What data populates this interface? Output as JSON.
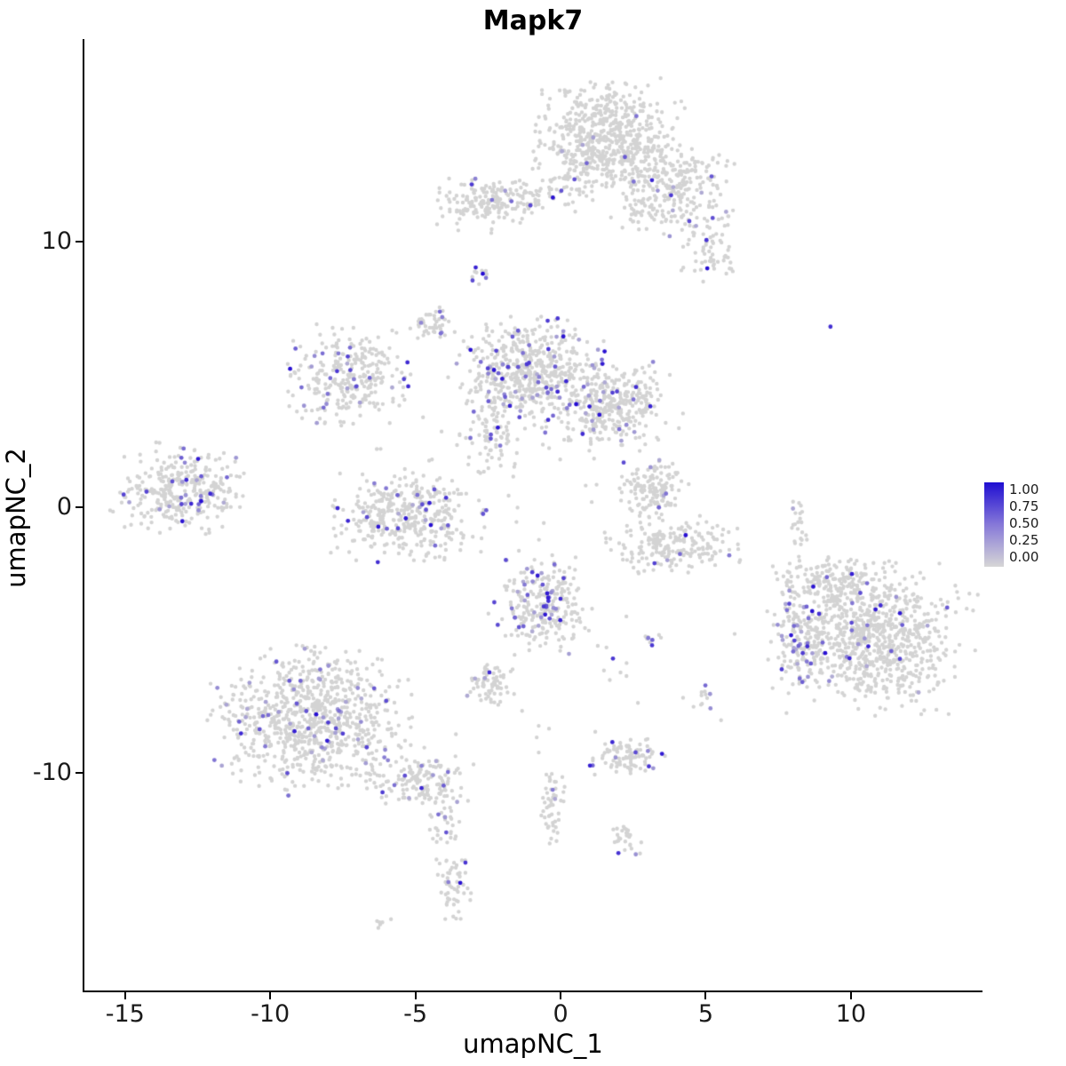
{
  "title": "Mapk7",
  "axes": {
    "x": {
      "label": "umapNC_1",
      "values": [
        -15,
        -10,
        -5,
        0,
        5,
        10
      ],
      "labels": [
        "-15",
        "-10",
        "-5",
        "0",
        "5",
        "10"
      ]
    },
    "y": {
      "label": "umapNC_2",
      "values": [
        -10,
        0,
        10
      ],
      "labels": [
        "-10",
        "0",
        "10"
      ]
    }
  },
  "legend": {
    "labels": [
      "1.00",
      "0.75",
      "0.50",
      "0.25",
      "0.00"
    ],
    "color_high": "#1f0ed2",
    "color_mid": "#8678d8",
    "color_low": "#d6d6d6"
  },
  "chart_data": {
    "type": "scatter",
    "title": "Mapk7",
    "xlabel": "umapNC_1",
    "ylabel": "umapNC_2",
    "xlim": [
      -16.4,
      14.5
    ],
    "ylim": [
      -18.2,
      17.6
    ],
    "grid": false,
    "legend_position": "right",
    "value_range": [
      0.0,
      1.0
    ],
    "point_color_zero": "#d3d3d3",
    "point_color_max": "#230ad2",
    "description": "UMAP feature plot of Mapk7 expression per cell; grey = no expression, blue = high expression",
    "clusters": [
      {
        "id": "top-main",
        "cx": 1.6,
        "cy": 13.8,
        "sx": 1.15,
        "sy": 1.0,
        "n": 650,
        "expressing_fraction": 0.012
      },
      {
        "id": "top-right",
        "cx": 3.9,
        "cy": 11.9,
        "sx": 0.95,
        "sy": 0.75,
        "n": 260,
        "expressing_fraction": 0.035
      },
      {
        "id": "top-right-arm",
        "cx": 5.2,
        "cy": 9.8,
        "sx": 0.45,
        "sy": 0.6,
        "n": 70,
        "expressing_fraction": 0.05
      },
      {
        "id": "top-left-small",
        "cx": -2.5,
        "cy": 11.4,
        "sx": 0.85,
        "sy": 0.45,
        "n": 170,
        "expressing_fraction": 0.05
      },
      {
        "id": "top-bridge",
        "cx": -0.7,
        "cy": 11.9,
        "sx": 0.7,
        "sy": 0.35,
        "n": 45,
        "expressing_fraction": 0.04
      },
      {
        "id": "dots-upper-mid",
        "cx": -2.8,
        "cy": 8.8,
        "sx": 0.18,
        "sy": 0.22,
        "n": 12,
        "expressing_fraction": 0.25
      },
      {
        "id": "small-upper-left",
        "cx": -4.4,
        "cy": 6.9,
        "sx": 0.32,
        "sy": 0.28,
        "n": 45,
        "expressing_fraction": 0.06
      },
      {
        "id": "left-mid",
        "cx": -7.3,
        "cy": 4.9,
        "sx": 0.95,
        "sy": 0.85,
        "n": 290,
        "expressing_fraction": 0.09
      },
      {
        "id": "central-main",
        "cx": -1.0,
        "cy": 5.1,
        "sx": 1.05,
        "sy": 0.95,
        "n": 560,
        "expressing_fraction": 0.13
      },
      {
        "id": "central-right",
        "cx": 1.8,
        "cy": 3.9,
        "sx": 0.85,
        "sy": 0.75,
        "n": 310,
        "expressing_fraction": 0.1
      },
      {
        "id": "central-south",
        "cx": -2.4,
        "cy": 2.6,
        "sx": 0.5,
        "sy": 0.55,
        "n": 70,
        "expressing_fraction": 0.1
      },
      {
        "id": "midfield-sparse",
        "cx": -1.5,
        "cy": 2.6,
        "sx": 2.6,
        "sy": 1.8,
        "n": 70,
        "expressing_fraction": 0.03
      },
      {
        "id": "mid-left",
        "cx": -5.3,
        "cy": -0.4,
        "sx": 1.15,
        "sy": 0.75,
        "n": 390,
        "expressing_fraction": 0.08
      },
      {
        "id": "far-left",
        "cx": -13.2,
        "cy": 0.7,
        "sx": 1.0,
        "sy": 0.75,
        "n": 330,
        "expressing_fraction": 0.06
      },
      {
        "id": "right-small",
        "cx": 3.1,
        "cy": 0.6,
        "sx": 0.55,
        "sy": 0.5,
        "n": 130,
        "expressing_fraction": 0.05
      },
      {
        "id": "right-arc",
        "cx": 3.9,
        "cy": -1.4,
        "sx": 1.0,
        "sy": 0.5,
        "n": 210,
        "expressing_fraction": 0.02
      },
      {
        "id": "center-bottom",
        "cx": -0.6,
        "cy": -3.6,
        "sx": 0.75,
        "sy": 0.85,
        "n": 250,
        "expressing_fraction": 0.13
      },
      {
        "id": "bottomleft-big",
        "cx": -8.6,
        "cy": -8.0,
        "sx": 1.5,
        "sy": 1.2,
        "n": 830,
        "expressing_fraction": 0.07
      },
      {
        "id": "bottomleft-tail",
        "cx": -4.9,
        "cy": -10.2,
        "sx": 0.8,
        "sy": 0.5,
        "n": 150,
        "expressing_fraction": 0.06
      },
      {
        "id": "tail-strand",
        "cx": -4.0,
        "cy": -11.9,
        "sx": 0.3,
        "sy": 0.7,
        "n": 40,
        "expressing_fraction": 0.04
      },
      {
        "id": "tail-blob",
        "cx": -3.7,
        "cy": -14.2,
        "sx": 0.3,
        "sy": 0.6,
        "n": 55,
        "expressing_fraction": 0.08
      },
      {
        "id": "bottom-pair",
        "cx": -6.2,
        "cy": -15.7,
        "sx": 0.25,
        "sy": 0.15,
        "n": 6,
        "expressing_fraction": 0.0
      },
      {
        "id": "right-big",
        "cx": 10.7,
        "cy": -4.9,
        "sx": 1.55,
        "sy": 1.25,
        "n": 880,
        "expressing_fraction": 0.05
      },
      {
        "id": "right-big-left-arm",
        "cx": 8.3,
        "cy": -4.7,
        "sx": 0.5,
        "sy": 0.9,
        "n": 120,
        "expressing_fraction": 0.15
      },
      {
        "id": "right-big-top-arm",
        "cx": 9.2,
        "cy": -2.7,
        "sx": 0.8,
        "sy": 0.5,
        "n": 110,
        "expressing_fraction": 0.03
      },
      {
        "id": "small-mid-bottom",
        "cx": -2.4,
        "cy": -6.6,
        "sx": 0.35,
        "sy": 0.4,
        "n": 70,
        "expressing_fraction": 0.1
      },
      {
        "id": "small-right-bottom",
        "cx": 2.3,
        "cy": -9.4,
        "sx": 0.55,
        "sy": 0.35,
        "n": 95,
        "expressing_fraction": 0.09
      },
      {
        "id": "strand-center-low",
        "cx": -0.3,
        "cy": -11.3,
        "sx": 0.2,
        "sy": 0.8,
        "n": 50,
        "expressing_fraction": 0.06
      },
      {
        "id": "dot-right-low",
        "cx": 2.2,
        "cy": -12.5,
        "sx": 0.25,
        "sy": 0.3,
        "n": 28,
        "expressing_fraction": 0.05
      },
      {
        "id": "pair-mid-low",
        "cx": 5.0,
        "cy": -7.35,
        "sx": 0.15,
        "sy": 0.3,
        "n": 10,
        "expressing_fraction": 0.25
      },
      {
        "id": "dot-mid",
        "cx": 3.1,
        "cy": -5.0,
        "sx": 0.25,
        "sy": 0.12,
        "n": 9,
        "expressing_fraction": 0.3
      },
      {
        "id": "strand-right-mid",
        "cx": 8.2,
        "cy": -0.6,
        "sx": 0.15,
        "sy": 0.55,
        "n": 22,
        "expressing_fraction": 0.02
      },
      {
        "id": "single-right-upper",
        "cx": 9.3,
        "cy": 6.8,
        "sx": 0.01,
        "sy": 0.01,
        "n": 1,
        "expressing_fraction": 1.0
      },
      {
        "id": "bottom-sparse",
        "cx": 1.5,
        "cy": -7.0,
        "sx": 2.2,
        "sy": 1.6,
        "n": 25,
        "expressing_fraction": 0.06
      }
    ]
  }
}
